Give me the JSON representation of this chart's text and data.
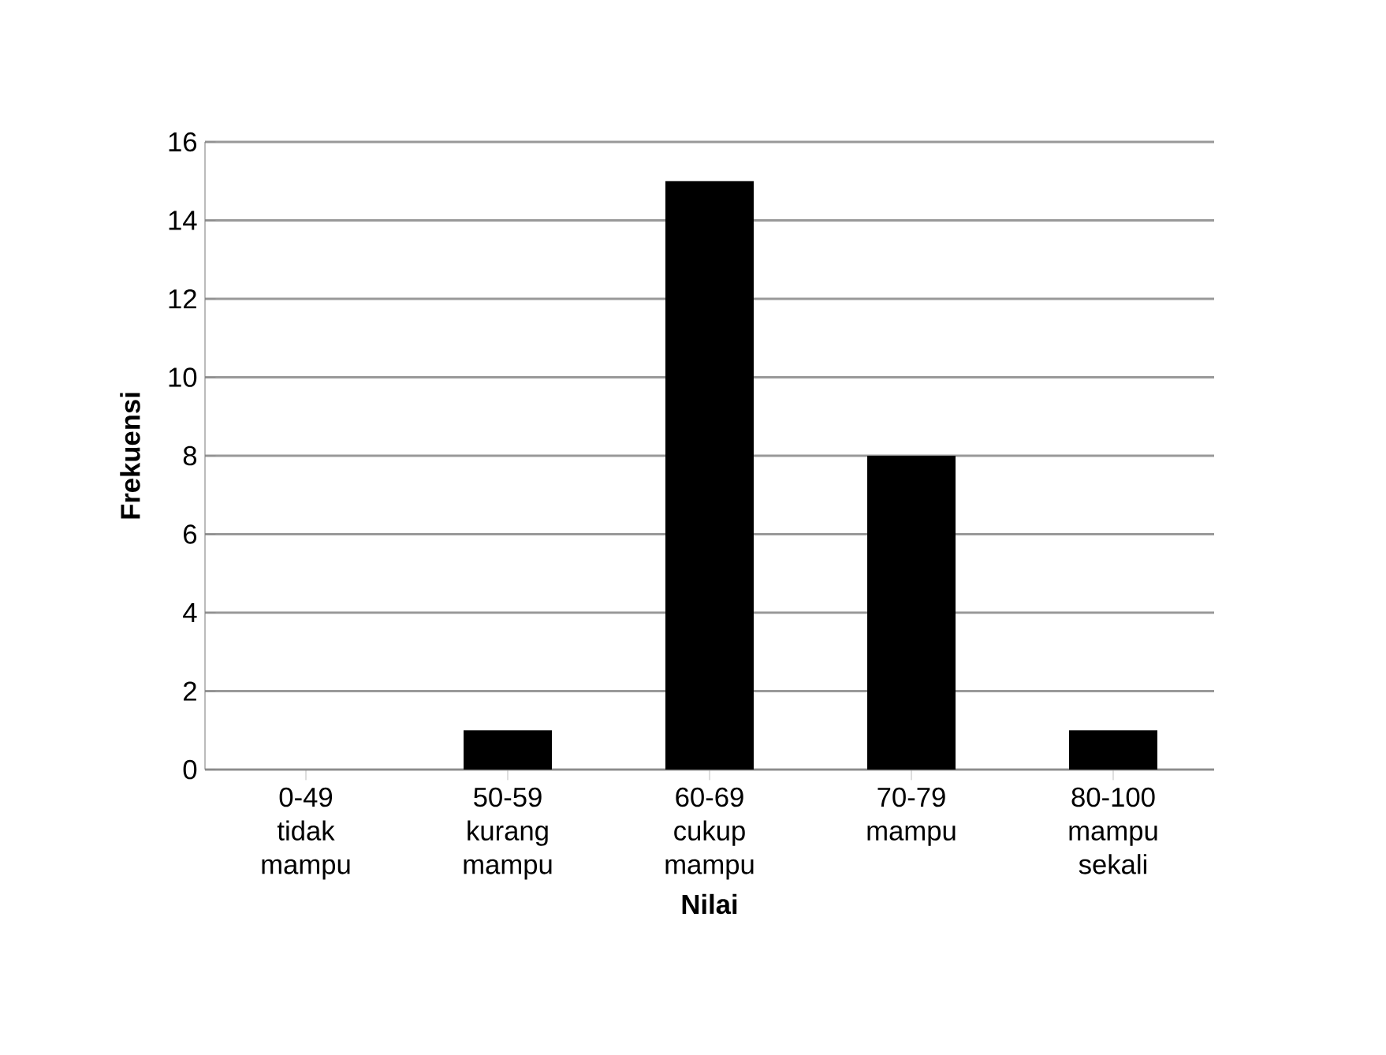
{
  "chart_data": {
    "type": "bar",
    "categories": [
      "0-49 tidak mampu",
      "50-59 kurang mampu",
      "60-69 cukup mampu",
      "70-79 mampu",
      "80-100 mampu sekali"
    ],
    "values": [
      0,
      1,
      15,
      8,
      1
    ],
    "color": "#000000",
    "xlabel": "Nilai",
    "ylabel": "Frekuensi",
    "ylim": [
      0,
      16
    ],
    "yticks": [
      0,
      2,
      4,
      6,
      8,
      10,
      12,
      14,
      16
    ],
    "grid": "y"
  }
}
